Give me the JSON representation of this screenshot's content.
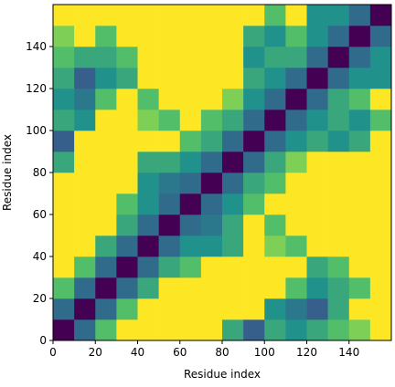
{
  "chart_data": {
    "type": "heatmap",
    "xlabel": "Residue index",
    "ylabel": "Residue index",
    "xbins": [
      0,
      10,
      20,
      30,
      40,
      50,
      60,
      70,
      80,
      90,
      100,
      110,
      120,
      130,
      140,
      150,
      160
    ],
    "ybins": [
      0,
      10,
      20,
      30,
      40,
      50,
      60,
      70,
      80,
      90,
      100,
      110,
      120,
      130,
      140,
      150,
      160
    ],
    "xlim": [
      0,
      160
    ],
    "ylim": [
      0,
      160
    ],
    "xticks": [
      0,
      20,
      40,
      60,
      80,
      100,
      120,
      140
    ],
    "yticks": [
      0,
      20,
      40,
      60,
      80,
      100,
      120,
      140
    ],
    "colormap": [
      "#440154",
      "#3b528b",
      "#21918c",
      "#5ec962",
      "#fde725"
    ],
    "clim": [
      0,
      1
    ],
    "z": [
      [
        0,
        0.35,
        0.7,
        1,
        1,
        1,
        1,
        1,
        0.6,
        0.3,
        0.6,
        0.5,
        0.6,
        0.7,
        0.8,
        1
      ],
      [
        0.35,
        0,
        0.35,
        0.7,
        1,
        1,
        1,
        1,
        1,
        1,
        0.5,
        0.4,
        0.3,
        0.6,
        1,
        1
      ],
      [
        0.7,
        0.35,
        0,
        0.35,
        0.6,
        1,
        1,
        1,
        1,
        1,
        1,
        0.7,
        0.5,
        0.6,
        0.7,
        1
      ],
      [
        1,
        0.7,
        0.35,
        0,
        0.35,
        0.6,
        0.7,
        1,
        1,
        1,
        1,
        1,
        0.6,
        0.7,
        1,
        1
      ],
      [
        1,
        1,
        0.6,
        0.35,
        0,
        0.35,
        0.5,
        0.5,
        0.6,
        1,
        0.8,
        0.7,
        1,
        1,
        1,
        1
      ],
      [
        1,
        1,
        1,
        0.6,
        0.35,
        0,
        0.35,
        0.4,
        0.6,
        1,
        0.7,
        1,
        1,
        1,
        1,
        1
      ],
      [
        1,
        1,
        1,
        0.7,
        0.5,
        0.35,
        0,
        0.35,
        0.5,
        0.7,
        1,
        1,
        1,
        1,
        1,
        1
      ],
      [
        1,
        1,
        1,
        1,
        0.5,
        0.4,
        0.35,
        0,
        0.35,
        0.6,
        0.7,
        1,
        1,
        1,
        1,
        1
      ],
      [
        0.6,
        1,
        1,
        1,
        0.6,
        0.6,
        0.5,
        0.35,
        0,
        0.35,
        0.6,
        0.8,
        1,
        1,
        1,
        1
      ],
      [
        0.3,
        1,
        1,
        1,
        1,
        1,
        0.7,
        0.6,
        0.35,
        0,
        0.35,
        0.5,
        0.6,
        0.5,
        0.6,
        1
      ],
      [
        0.6,
        0.5,
        1,
        1,
        0.8,
        0.7,
        1,
        0.7,
        0.6,
        0.35,
        0,
        0.35,
        0.5,
        0.6,
        0.5,
        0.7
      ],
      [
        0.5,
        0.4,
        0.7,
        1,
        0.7,
        1,
        1,
        1,
        0.8,
        0.5,
        0.35,
        0,
        0.35,
        0.6,
        0.7,
        1
      ],
      [
        0.6,
        0.3,
        0.5,
        0.6,
        1,
        1,
        1,
        1,
        1,
        0.6,
        0.5,
        0.35,
        0,
        0.35,
        0.5,
        0.5
      ],
      [
        0.7,
        0.6,
        0.6,
        0.7,
        1,
        1,
        1,
        1,
        1,
        0.5,
        0.6,
        0.6,
        0.35,
        0,
        0.35,
        0.5
      ],
      [
        0.8,
        1,
        0.7,
        1,
        1,
        1,
        1,
        1,
        1,
        0.6,
        0.5,
        0.7,
        0.5,
        0.35,
        0,
        0.35
      ],
      [
        1,
        1,
        1,
        1,
        1,
        1,
        1,
        1,
        1,
        1,
        0.7,
        1,
        0.5,
        0.5,
        0.35,
        0
      ]
    ]
  }
}
